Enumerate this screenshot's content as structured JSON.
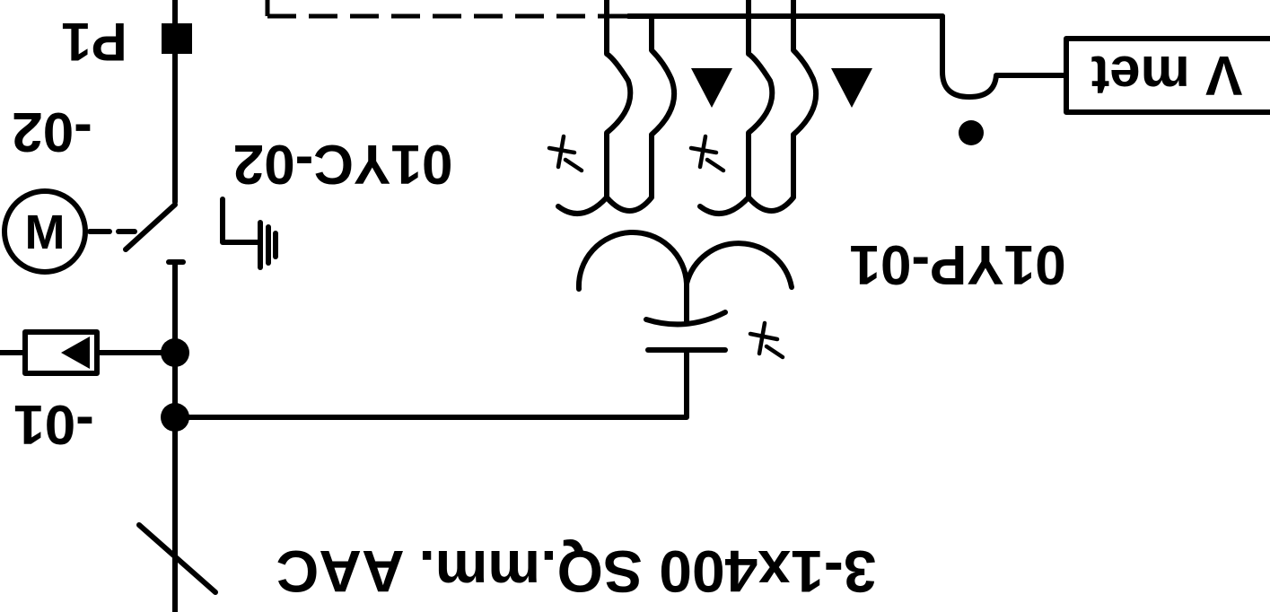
{
  "labels": {
    "p1": "P1",
    "left_mid": "-02",
    "left_low": "-01",
    "upper_device": "01YC-02",
    "transformer": "01YP-01",
    "meter_box": "V met",
    "motor_symbol": "M",
    "cable": "3-1x400 SQ.mm. AAC"
  },
  "orientation": "horizontally mirrored",
  "colors": {
    "ink": "#000000",
    "background": "#ffffff"
  }
}
